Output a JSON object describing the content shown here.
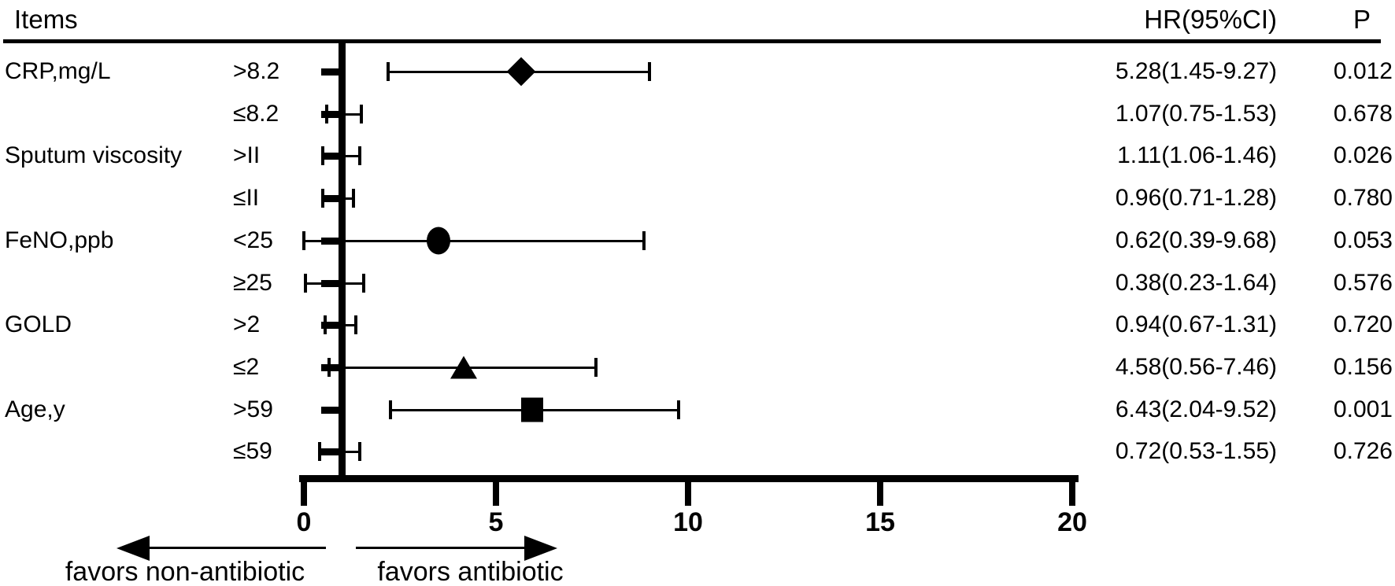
{
  "figure": {
    "header": {
      "items": "Items",
      "hr_ci": "HR(95%CI)",
      "p": "P"
    },
    "footer": {
      "left_arrow_label": "favors non-antibiotic",
      "right_arrow_label": "favors antibiotic"
    }
  },
  "chart_data": {
    "type": "forest",
    "columns": [
      "Items",
      "HR(95%CI)",
      "P"
    ],
    "x_axis": {
      "min": 0,
      "max": 20,
      "ticks": [
        0,
        5,
        10,
        15,
        20
      ],
      "reference_line": 1
    },
    "rows": [
      {
        "group": "CRP,mg/L",
        "subgroup": ">8.2",
        "hr_text": "5.28(1.45-9.27)",
        "hr": 5.28,
        "ci_low": 1.45,
        "ci_high": 9.27,
        "p": "0.012",
        "marker": "diamond",
        "plot": {
          "lo": 2.2,
          "hi": 9.0,
          "est": 5.65
        }
      },
      {
        "group": "",
        "subgroup": "≤8.2",
        "hr_text": "1.07(0.75-1.53)",
        "hr": 1.07,
        "ci_low": 0.75,
        "ci_high": 1.53,
        "p": "0.678",
        "marker": "none",
        "plot": {
          "lo": 0.6,
          "hi": 1.5
        }
      },
      {
        "group": "Sputum viscosity",
        "subgroup": ">II",
        "hr_text": "1.11(1.06-1.46)",
        "hr": 1.11,
        "ci_low": 1.06,
        "ci_high": 1.46,
        "p": "0.026",
        "marker": "none",
        "plot": {
          "lo": 0.5,
          "hi": 1.45
        }
      },
      {
        "group": "",
        "subgroup": "≤II",
        "hr_text": "0.96(0.71-1.28)",
        "hr": 0.96,
        "ci_low": 0.71,
        "ci_high": 1.28,
        "p": "0.780",
        "marker": "none",
        "plot": {
          "lo": 0.5,
          "hi": 1.3
        }
      },
      {
        "group": "FeNO,ppb",
        "subgroup": "<25",
        "hr_text": "0.62(0.39-9.68)",
        "hr": 0.62,
        "ci_low": 0.39,
        "ci_high": 9.68,
        "p": "0.053",
        "marker": "circle",
        "plot": {
          "lo": 0.0,
          "hi": 8.85,
          "est": 3.5
        }
      },
      {
        "group": "",
        "subgroup": "≥25",
        "hr_text": "0.38(0.23-1.64)",
        "hr": 0.38,
        "ci_low": 0.23,
        "ci_high": 1.64,
        "p": "0.576",
        "marker": "none",
        "plot": {
          "lo": 0.05,
          "hi": 1.55
        }
      },
      {
        "group": "GOLD",
        "subgroup": ">2",
        "hr_text": "0.94(0.67-1.31)",
        "hr": 0.94,
        "ci_low": 0.67,
        "ci_high": 1.31,
        "p": "0.720",
        "marker": "none",
        "plot": {
          "lo": 0.55,
          "hi": 1.35
        }
      },
      {
        "group": "",
        "subgroup": "≤2",
        "hr_text": "4.58(0.56-7.46)",
        "hr": 4.58,
        "ci_low": 0.56,
        "ci_high": 7.46,
        "p": "0.156",
        "marker": "triangle",
        "plot": {
          "lo": 0.65,
          "hi": 7.6,
          "est": 4.15
        }
      },
      {
        "group": "Age,y",
        "subgroup": ">59",
        "hr_text": "6.43(2.04-9.52)",
        "hr": 6.43,
        "ci_low": 2.04,
        "ci_high": 9.52,
        "p": "0.001",
        "marker": "square",
        "plot": {
          "lo": 2.25,
          "hi": 9.75,
          "est": 5.95
        }
      },
      {
        "group": "",
        "subgroup": "≤59",
        "hr_text": "0.72(0.53-1.55)",
        "hr": 0.72,
        "ci_low": 0.53,
        "ci_high": 1.55,
        "p": "0.726",
        "marker": "none",
        "plot": {
          "lo": 0.4,
          "hi": 1.45
        }
      }
    ]
  }
}
